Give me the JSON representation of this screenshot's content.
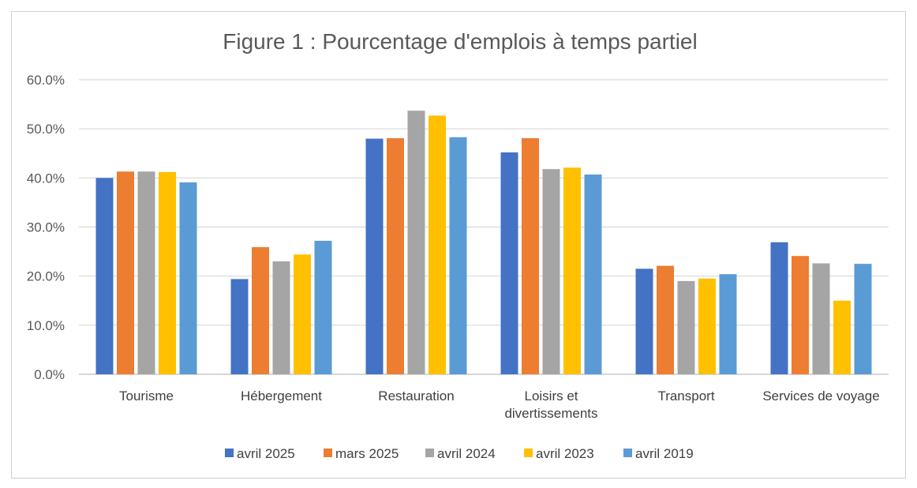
{
  "chart_data": {
    "type": "bar",
    "title": "Figure 1 : Pourcentage d'emplois à temps partiel",
    "xlabel": "",
    "ylabel": "",
    "ylim": [
      0,
      60
    ],
    "yticks": [
      0,
      10,
      20,
      30,
      40,
      50,
      60
    ],
    "ytick_labels": [
      "0.0%",
      "10.0%",
      "20.0%",
      "30.0%",
      "40.0%",
      "50.0%",
      "60.0%"
    ],
    "grid": true,
    "legend_position": "bottom",
    "categories": [
      [
        "Tourisme"
      ],
      [
        "Hébergement"
      ],
      [
        "Restauration"
      ],
      [
        "Loisirs et",
        "divertissements"
      ],
      [
        "Transport"
      ],
      [
        "Services de voyage"
      ]
    ],
    "series": [
      {
        "name": "avril 2025",
        "color": "#4472C4",
        "values": [
          40.0,
          19.4,
          48.0,
          45.2,
          21.5,
          26.9
        ]
      },
      {
        "name": "mars 2025",
        "color": "#ED7D31",
        "values": [
          41.3,
          25.9,
          48.1,
          48.1,
          22.1,
          24.1
        ]
      },
      {
        "name": "avril 2024",
        "color": "#A5A5A5",
        "values": [
          41.3,
          23.0,
          53.7,
          41.8,
          19.0,
          22.6
        ]
      },
      {
        "name": "avril 2023",
        "color": "#FFC000",
        "values": [
          41.2,
          24.4,
          52.7,
          42.1,
          19.5,
          15.0
        ]
      },
      {
        "name": "avril 2019",
        "color": "#5B9BD5",
        "values": [
          39.1,
          27.2,
          48.3,
          40.7,
          20.4,
          22.5
        ]
      }
    ]
  }
}
